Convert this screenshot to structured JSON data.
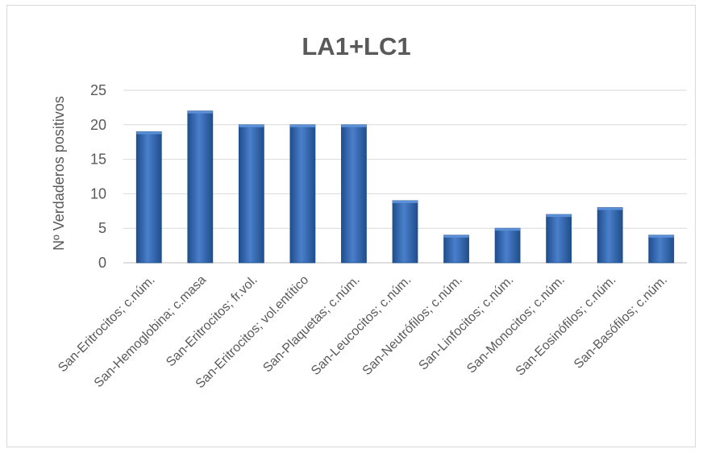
{
  "chart_data": {
    "type": "bar",
    "title": "LA1+LC1",
    "xlabel": "",
    "ylabel": "Nº Verdaderos positivos",
    "categories": [
      "San-Eritrocitos; c.núm.",
      "San-Hemoglobina; c.masa",
      "San-Eritrocitos; fr.vol.",
      "San-Eritrocitos; vol.entítico",
      "San-Plaquetas; c.núm.",
      "San-Leucocitos; c.núm.",
      "San-Neutrófilos; c.núm.",
      "San-Linfocitos; c.núm.",
      "San-Monocitos; c.núm.",
      "San-Eosinófilos; c.núm.",
      "San-Basófilos; c.núm."
    ],
    "values": [
      19,
      22,
      20,
      20,
      20,
      9,
      4,
      5,
      7,
      8,
      4
    ],
    "ylim": [
      0,
      25
    ],
    "yticks": [
      "0",
      "5",
      "10",
      "15",
      "20",
      "25"
    ],
    "grid": true,
    "legend": "none",
    "colors": {
      "bar": "#2e64b0",
      "bar_light": "#5b8fd6",
      "bar_dark": "#1f4e8c"
    }
  }
}
